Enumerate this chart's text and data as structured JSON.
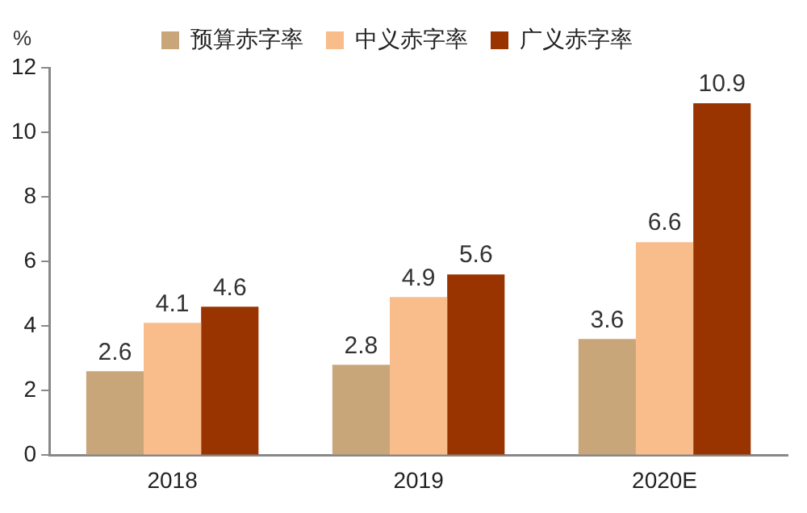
{
  "chart_data": {
    "type": "bar",
    "ylabel": "%",
    "categories": [
      "2018",
      "2019",
      "2020E"
    ],
    "series": [
      {
        "name": "预算赤字率",
        "color": "#c8a67a",
        "values": [
          2.6,
          2.8,
          3.6
        ]
      },
      {
        "name": "中义赤字率",
        "color": "#f9bd8c",
        "values": [
          4.1,
          4.9,
          6.6
        ]
      },
      {
        "name": "广义赤字率",
        "color": "#993300",
        "values": [
          4.6,
          5.6,
          10.9
        ]
      }
    ],
    "ylim": [
      0,
      12
    ],
    "yticks": [
      0,
      2,
      4,
      6,
      8,
      10,
      12
    ],
    "grid": false,
    "legend": "top",
    "data_labels": true
  }
}
